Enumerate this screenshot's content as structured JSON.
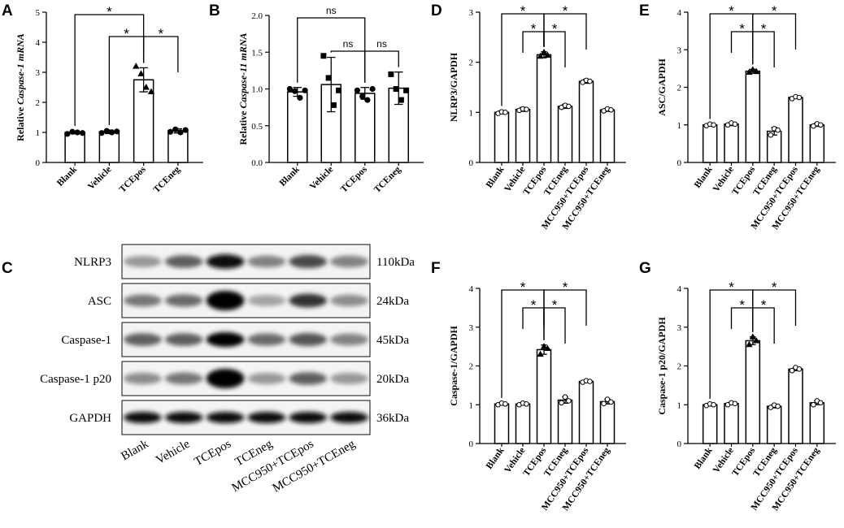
{
  "chart_data": [
    {
      "panel": "A",
      "type": "bar",
      "ylabel_prefix": "Relative ",
      "ylabel_italic": "Caspase-1 mRNA",
      "categories": [
        "Blank",
        "Vehicle",
        "TCEpos",
        "TCEneg"
      ],
      "values": [
        1.0,
        1.02,
        2.75,
        1.05
      ],
      "errors": [
        0.05,
        0.06,
        0.4,
        0.07
      ],
      "points": [
        [
          0.95,
          1.02,
          1.0,
          0.98
        ],
        [
          0.98,
          1.05,
          1.0,
          1.03
        ],
        [
          3.2,
          2.95,
          2.5,
          2.35
        ],
        [
          1.02,
          1.1,
          1.0,
          1.08
        ]
      ],
      "ylim": [
        0,
        5
      ],
      "yticks": [
        0,
        1,
        2,
        3,
        4,
        5
      ],
      "ytick_labels": [
        "0",
        "1",
        "2",
        "3",
        "4",
        "5"
      ],
      "comparisons": [
        {
          "from": 0,
          "to": 2,
          "label": "*"
        },
        {
          "from": 1,
          "to": 2,
          "label": "*"
        },
        {
          "from": 2,
          "to": 3,
          "label": "*"
        }
      ]
    },
    {
      "panel": "B",
      "type": "bar",
      "ylabel_prefix": "Relative ",
      "ylabel_italic": "Caspase-11 mRNA",
      "categories": [
        "Blank",
        "Vehicle",
        "TCEpos",
        "TCEneg"
      ],
      "values": [
        0.96,
        1.06,
        0.94,
        1.01
      ],
      "errors": [
        0.06,
        0.37,
        0.08,
        0.22
      ],
      "points": [
        [
          1.0,
          0.97,
          0.88,
          0.98
        ],
        [
          1.45,
          1.15,
          0.78,
          0.98
        ],
        [
          0.98,
          0.9,
          0.85,
          1.0
        ],
        [
          1.2,
          1.0,
          0.85,
          0.98
        ]
      ],
      "ylim": [
        0,
        2
      ],
      "yticks": [
        0,
        0.5,
        1,
        1.5,
        2
      ],
      "ytick_labels": [
        "0.0",
        "0.5",
        "1.0",
        "1.5",
        "2.0"
      ],
      "comparisons": [
        {
          "from": 0,
          "to": 2,
          "label": "ns"
        },
        {
          "from": 1,
          "to": 2,
          "label": "ns"
        },
        {
          "from": 2,
          "to": 3,
          "label": "ns"
        }
      ]
    },
    {
      "panel": "D",
      "type": "bar",
      "ylabel": "NLRP3/GAPDH",
      "categories": [
        "Blank",
        "Vehicle",
        "TCEpos",
        "TCEneg",
        "MCC950+TCEpos",
        "MCC950+TCEneg"
      ],
      "values": [
        1.0,
        1.06,
        2.15,
        1.12,
        1.62,
        1.05
      ],
      "errors": [
        0.03,
        0.04,
        0.06,
        0.04,
        0.04,
        0.03
      ],
      "points": [
        [
          0.98,
          1.01,
          1.0
        ],
        [
          1.04,
          1.07,
          1.06
        ],
        [
          2.12,
          2.2,
          2.14
        ],
        [
          1.1,
          1.14,
          1.12
        ],
        [
          1.6,
          1.64,
          1.62
        ],
        [
          1.03,
          1.07,
          1.05
        ]
      ],
      "ylim": [
        0,
        3
      ],
      "yticks": [
        0,
        1,
        2,
        3
      ],
      "ytick_labels": [
        "0",
        "1",
        "2",
        "3"
      ],
      "comparisons": [
        {
          "from": 0,
          "to": 2,
          "label": "*"
        },
        {
          "from": 2,
          "to": 4,
          "label": "*"
        },
        {
          "from": 1,
          "to": 2,
          "label": "*"
        },
        {
          "from": 2,
          "to": 3,
          "label": "*"
        }
      ]
    },
    {
      "panel": "E",
      "type": "bar",
      "ylabel": "ASC/GAPDH",
      "categories": [
        "Blank",
        "Vehicle",
        "TCEpos",
        "TCEneg",
        "MCC950+TCEpos",
        "MCC950+TCEneg"
      ],
      "values": [
        1.0,
        1.02,
        2.43,
        0.83,
        1.73,
        1.0
      ],
      "errors": [
        0.03,
        0.04,
        0.05,
        0.1,
        0.03,
        0.04
      ],
      "points": [
        [
          0.98,
          1.02,
          1.0
        ],
        [
          1.0,
          1.05,
          1.02
        ],
        [
          2.4,
          2.47,
          2.42
        ],
        [
          0.73,
          0.9,
          0.86
        ],
        [
          1.7,
          1.75,
          1.73
        ],
        [
          0.97,
          1.03,
          1.0
        ]
      ],
      "ylim": [
        0,
        4
      ],
      "yticks": [
        0,
        1,
        2,
        3,
        4
      ],
      "ytick_labels": [
        "0",
        "1",
        "2",
        "3",
        "4"
      ],
      "comparisons": [
        {
          "from": 0,
          "to": 2,
          "label": "*"
        },
        {
          "from": 2,
          "to": 4,
          "label": "*"
        },
        {
          "from": 1,
          "to": 2,
          "label": "*"
        },
        {
          "from": 2,
          "to": 3,
          "label": "*"
        }
      ]
    },
    {
      "panel": "F",
      "type": "bar",
      "ylabel": "Caspase-1/GAPDH",
      "categories": [
        "Blank",
        "Vehicle",
        "TCEpos",
        "TCEneg",
        "MCC950+TCEpos",
        "MCC950+TCEneg"
      ],
      "values": [
        1.02,
        1.02,
        2.42,
        1.12,
        1.6,
        1.08
      ],
      "errors": [
        0.03,
        0.03,
        0.12,
        0.08,
        0.03,
        0.06
      ],
      "points": [
        [
          1.0,
          1.04,
          1.02
        ],
        [
          1.0,
          1.04,
          1.02
        ],
        [
          2.3,
          2.5,
          2.45
        ],
        [
          1.05,
          1.2,
          1.1
        ],
        [
          1.58,
          1.62,
          1.6
        ],
        [
          1.03,
          1.14,
          1.07
        ]
      ],
      "ylim": [
        0,
        4
      ],
      "yticks": [
        0,
        1,
        2,
        3,
        4
      ],
      "ytick_labels": [
        "0",
        "1",
        "2",
        "3",
        "4"
      ],
      "comparisons": [
        {
          "from": 0,
          "to": 2,
          "label": "*"
        },
        {
          "from": 2,
          "to": 4,
          "label": "*"
        },
        {
          "from": 1,
          "to": 2,
          "label": "*"
        },
        {
          "from": 2,
          "to": 3,
          "label": "*"
        }
      ]
    },
    {
      "panel": "G",
      "type": "bar",
      "ylabel": "Caspase-1 p20/GAPDH",
      "categories": [
        "Blank",
        "Vehicle",
        "TCEpos",
        "TCEneg",
        "MCC950+TCEpos",
        "MCC950+TCEneg"
      ],
      "values": [
        1.0,
        1.03,
        2.65,
        0.96,
        1.92,
        1.05
      ],
      "errors": [
        0.03,
        0.03,
        0.1,
        0.04,
        0.04,
        0.05
      ],
      "points": [
        [
          0.98,
          1.02,
          1.0
        ],
        [
          1.0,
          1.05,
          1.03
        ],
        [
          2.55,
          2.75,
          2.65
        ],
        [
          0.93,
          0.99,
          0.96
        ],
        [
          1.88,
          1.96,
          1.92
        ],
        [
          1.0,
          1.1,
          1.05
        ]
      ],
      "ylim": [
        0,
        4
      ],
      "yticks": [
        0,
        1,
        2,
        3,
        4
      ],
      "ytick_labels": [
        "0",
        "1",
        "2",
        "3",
        "4"
      ],
      "comparisons": [
        {
          "from": 0,
          "to": 2,
          "label": "*"
        },
        {
          "from": 2,
          "to": 4,
          "label": "*"
        },
        {
          "from": 1,
          "to": 2,
          "label": "*"
        },
        {
          "from": 2,
          "to": 3,
          "label": "*"
        }
      ]
    }
  ],
  "blot": {
    "panel": "C",
    "rows": [
      {
        "label": "NLRP3",
        "size": "110kDa",
        "intensity": [
          0.35,
          0.6,
          0.95,
          0.45,
          0.7,
          0.45
        ]
      },
      {
        "label": "ASC",
        "size": "24kDa",
        "intensity": [
          0.5,
          0.55,
          1.0,
          0.3,
          0.8,
          0.4
        ]
      },
      {
        "label": "Caspase-1",
        "size": "45kDa",
        "intensity": [
          0.6,
          0.6,
          1.0,
          0.55,
          0.65,
          0.45
        ]
      },
      {
        "label": "Caspase-1 p20",
        "size": "20kDa",
        "intensity": [
          0.4,
          0.5,
          1.0,
          0.35,
          0.6,
          0.35
        ]
      },
      {
        "label": "GAPDH",
        "size": "36kDa",
        "intensity": [
          0.95,
          0.95,
          0.95,
          0.95,
          0.95,
          0.95
        ]
      }
    ],
    "lanes": [
      "Blank",
      "Vehicle",
      "TCEpos",
      "TCEneg",
      "MCC950+TCEpos",
      "MCC950+TCEneg"
    ]
  }
}
